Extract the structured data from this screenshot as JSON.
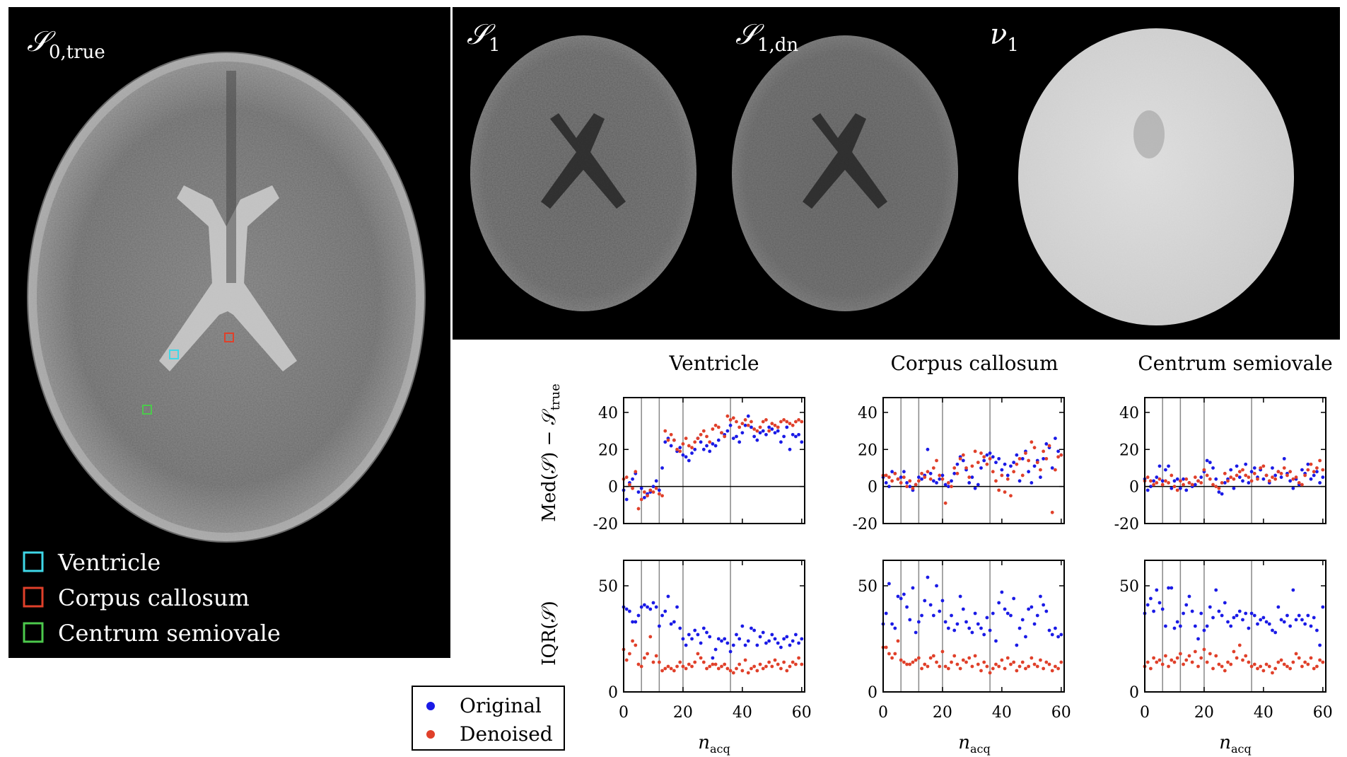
{
  "image_panels": [
    {
      "label": "𝒮",
      "sub": "0,true"
    },
    {
      "label": "𝒮",
      "sub": "1"
    },
    {
      "label": "𝒮",
      "sub": "1,dn"
    },
    {
      "label": "ν",
      "sub": "1"
    }
  ],
  "roi_legend": [
    {
      "label": "Ventricle",
      "color": "#3fd8e8"
    },
    {
      "label": "Corpus callosum",
      "color": "#e0402a"
    },
    {
      "label": "Centrum semiovale",
      "color": "#4cc94c"
    }
  ],
  "series_legend": [
    {
      "label": "Original",
      "color": "#1a1ae6"
    },
    {
      "label": "Denoised",
      "color": "#e0402a"
    }
  ],
  "row_labels": {
    "median": {
      "main": "Med(𝒮) − 𝒮",
      "sub": "true"
    },
    "iqr": {
      "main": "IQR(𝒮)"
    }
  },
  "xlabel": {
    "main": "n",
    "sub": "acq"
  },
  "chart_data": {
    "type": "scatter",
    "columns": [
      "Ventricle",
      "Corpus callosum",
      "Centrum semiovale"
    ],
    "xlim": [
      0,
      61
    ],
    "xticks": [
      0,
      20,
      40,
      60
    ],
    "median_ylim": [
      -20,
      48
    ],
    "median_yticks": [
      -20,
      0,
      20,
      40
    ],
    "median_ytick_labels": [
      "-20",
      "0",
      "20",
      "40"
    ],
    "iqr_ylim": [
      0,
      62
    ],
    "iqr_yticks": [
      0,
      50
    ],
    "vlines": [
      6,
      12,
      20,
      36
    ],
    "median_zero_line": true,
    "panels": [
      {
        "region": "Ventricle",
        "median": {
          "Original": [
            -2,
            -7,
            2,
            4,
            7,
            -3,
            -1,
            -6,
            -4,
            -3,
            0,
            3,
            -2,
            10,
            24,
            26,
            22,
            25,
            19,
            21,
            17,
            16,
            14,
            18,
            20,
            26,
            24,
            20,
            22,
            19,
            23,
            22,
            25,
            29,
            28,
            30,
            33,
            26,
            27,
            24,
            29,
            33,
            38,
            32,
            27,
            25,
            29,
            30,
            28,
            32,
            31,
            29,
            30,
            24,
            27,
            32,
            20,
            28,
            27,
            28,
            24
          ],
          "Denoised": [
            4,
            5,
            1,
            -1,
            8,
            -12,
            -7,
            -3,
            -5,
            -2,
            -3,
            -1,
            -4,
            -5,
            30,
            25,
            28,
            25,
            20,
            19,
            23,
            26,
            22,
            21,
            24,
            26,
            28,
            30,
            27,
            24,
            31,
            33,
            32,
            29,
            27,
            38,
            36,
            37,
            35,
            32,
            34,
            36,
            33,
            35,
            31,
            30,
            32,
            35,
            36,
            30,
            34,
            33,
            32,
            35,
            36,
            35,
            34,
            33,
            35,
            36,
            35
          ]
        },
        "iqr": {
          "Original": [
            40,
            39,
            38,
            33,
            33,
            36,
            40,
            41,
            40,
            39,
            42,
            40,
            31,
            36,
            38,
            45,
            32,
            33,
            40,
            30,
            25,
            22,
            27,
            25,
            29,
            27,
            23,
            30,
            28,
            26,
            16,
            20,
            25,
            24,
            25,
            23,
            19,
            22,
            27,
            25,
            31,
            22,
            24,
            30,
            29,
            22,
            26,
            28,
            23,
            24,
            27,
            25,
            23,
            21,
            25,
            26,
            22,
            24,
            27,
            23,
            25
          ],
          "Denoised": [
            20,
            15,
            18,
            24,
            22,
            13,
            12,
            16,
            18,
            26,
            14,
            17,
            14,
            10,
            11,
            12,
            11,
            10,
            12,
            14,
            12,
            11,
            13,
            12,
            14,
            18,
            16,
            14,
            11,
            12,
            13,
            13,
            11,
            12,
            13,
            11,
            10,
            9,
            11,
            13,
            10,
            15,
            9,
            11,
            12,
            10,
            13,
            11,
            12,
            14,
            12,
            15,
            13,
            11,
            14,
            10,
            12,
            14,
            13,
            16,
            13
          ]
        }
      },
      {
        "region": "Corpus callosum",
        "median": {
          "Original": [
            5,
            2,
            0,
            8,
            7,
            4,
            5,
            8,
            2,
            0,
            -2,
            1,
            5,
            4,
            6,
            20,
            7,
            3,
            2,
            4,
            6,
            1,
            0,
            3,
            7,
            12,
            16,
            14,
            9,
            2,
            5,
            -1,
            1,
            10,
            14,
            17,
            18,
            16,
            13,
            15,
            9,
            12,
            6,
            11,
            13,
            17,
            3,
            15,
            19,
            8,
            2,
            11,
            14,
            5,
            15,
            23,
            21,
            10,
            26,
            19,
            17
          ],
          "Denoised": [
            6,
            6,
            5,
            3,
            7,
            4,
            2,
            5,
            0,
            3,
            -1,
            1,
            3,
            7,
            5,
            8,
            4,
            10,
            14,
            6,
            4,
            -9,
            2,
            0,
            10,
            7,
            15,
            17,
            10,
            5,
            11,
            19,
            13,
            18,
            16,
            12,
            15,
            8,
            3,
            -2,
            6,
            -3,
            4,
            -5,
            8,
            12,
            15,
            6,
            18,
            14,
            24,
            21,
            13,
            9,
            19,
            15,
            22,
            -14,
            9,
            16,
            17
          ]
        },
        "iqr": {
          "Original": [
            32,
            37,
            51,
            32,
            30,
            45,
            44,
            46,
            40,
            34,
            49,
            28,
            33,
            36,
            43,
            54,
            41,
            36,
            50,
            38,
            43,
            33,
            30,
            36,
            29,
            32,
            45,
            39,
            33,
            30,
            28,
            37,
            32,
            30,
            27,
            35,
            29,
            37,
            24,
            42,
            47,
            39,
            37,
            36,
            44,
            22,
            30,
            34,
            26,
            39,
            40,
            32,
            36,
            45,
            41,
            38,
            29,
            27,
            30,
            26,
            27
          ],
          "Denoised": [
            21,
            21,
            18,
            16,
            18,
            24,
            15,
            14,
            13,
            13,
            14,
            15,
            16,
            11,
            13,
            12,
            16,
            17,
            14,
            12,
            19,
            12,
            11,
            14,
            17,
            13,
            11,
            15,
            14,
            16,
            12,
            17,
            13,
            10,
            14,
            12,
            9,
            11,
            13,
            12,
            15,
            11,
            16,
            13,
            14,
            10,
            12,
            14,
            11,
            12,
            16,
            13,
            12,
            15,
            11,
            14,
            13,
            10,
            12,
            11,
            14
          ]
        }
      },
      {
        "region": "Centrum semiovale",
        "median": {
          "Original": [
            4,
            -2,
            0,
            3,
            5,
            11,
            3,
            9,
            11,
            -1,
            3,
            4,
            -1,
            4,
            -2,
            2,
            0,
            1,
            3,
            5,
            8,
            14,
            13,
            10,
            4,
            -3,
            -4,
            2,
            4,
            9,
            -1,
            11,
            5,
            3,
            12,
            2,
            8,
            10,
            5,
            9,
            4,
            6,
            2,
            10,
            6,
            8,
            5,
            15,
            7,
            3,
            -1,
            4,
            1,
            9,
            7,
            12,
            4,
            6,
            8,
            2,
            5
          ],
          "Denoised": [
            3,
            5,
            3,
            1,
            2,
            4,
            1,
            3,
            2,
            6,
            0,
            -2,
            3,
            1,
            4,
            2,
            1,
            5,
            3,
            2,
            9,
            6,
            4,
            1,
            0,
            -1,
            2,
            7,
            3,
            5,
            4,
            6,
            8,
            9,
            6,
            5,
            3,
            7,
            4,
            10,
            11,
            6,
            3,
            5,
            4,
            8,
            7,
            10,
            6,
            8,
            4,
            5,
            2,
            1,
            6,
            9,
            12,
            8,
            10,
            14,
            9
          ]
        },
        "iqr": {
          "Original": [
            37,
            41,
            44,
            38,
            48,
            42,
            39,
            31,
            49,
            49,
            30,
            33,
            31,
            37,
            41,
            45,
            38,
            31,
            25,
            37,
            29,
            31,
            40,
            35,
            48,
            38,
            36,
            42,
            33,
            31,
            35,
            36,
            38,
            34,
            37,
            30,
            37,
            36,
            32,
            34,
            35,
            33,
            32,
            29,
            28,
            40,
            34,
            33,
            36,
            31,
            48,
            34,
            36,
            34,
            32,
            36,
            31,
            35,
            29,
            22,
            40
          ],
          "Denoised": [
            12,
            14,
            11,
            16,
            14,
            15,
            13,
            17,
            12,
            15,
            14,
            16,
            18,
            13,
            15,
            17,
            14,
            19,
            12,
            16,
            20,
            14,
            18,
            11,
            17,
            13,
            12,
            10,
            14,
            13,
            19,
            16,
            22,
            15,
            17,
            14,
            12,
            13,
            11,
            12,
            10,
            13,
            12,
            9,
            11,
            14,
            15,
            13,
            12,
            11,
            14,
            18,
            16,
            12,
            14,
            13,
            16,
            11,
            12,
            15,
            14
          ]
        }
      }
    ]
  }
}
